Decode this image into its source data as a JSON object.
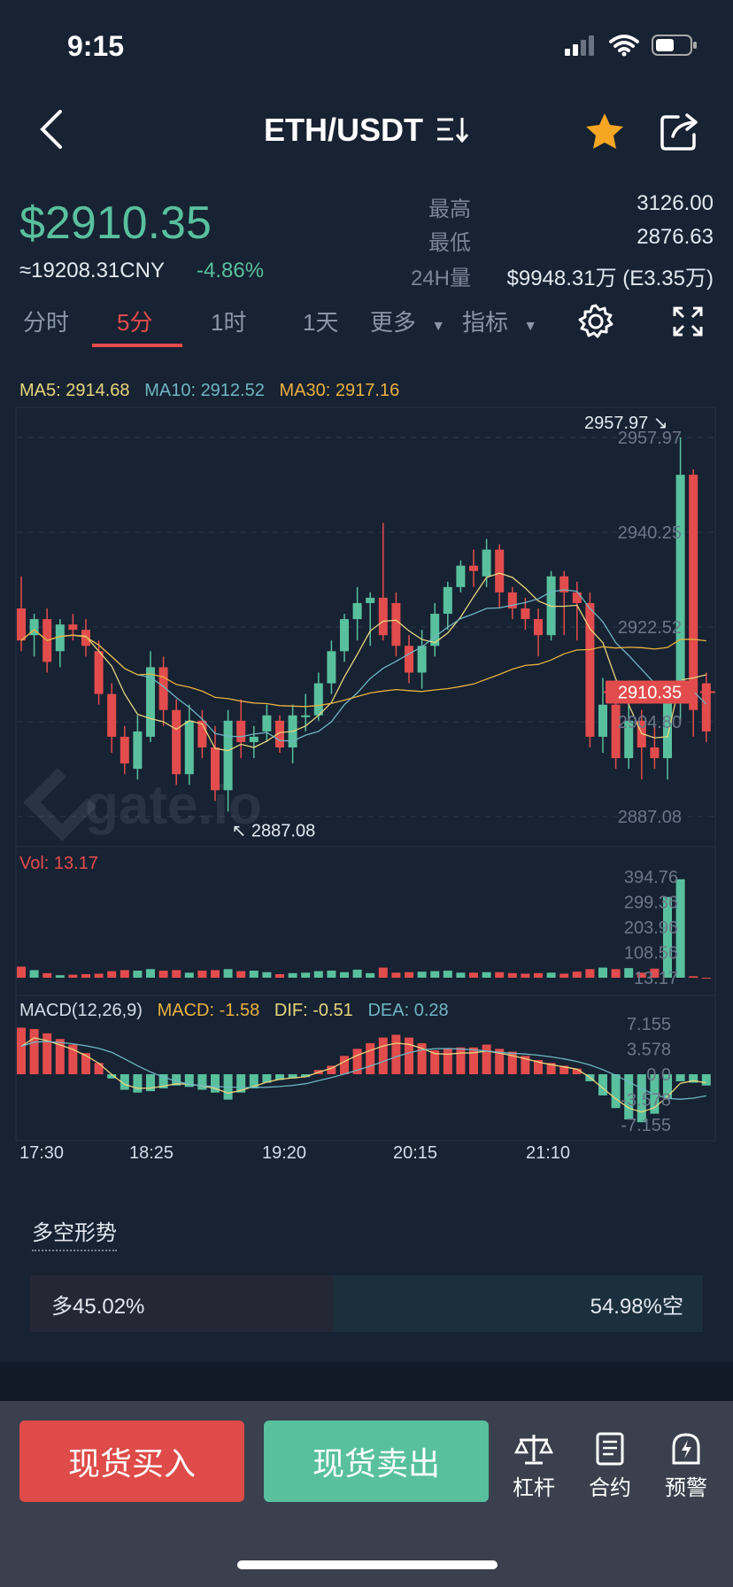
{
  "status_bar": {
    "time": "9:15"
  },
  "header": {
    "pair": "ETH/USDT"
  },
  "ticker": {
    "price": "$2910.35",
    "cny": "≈19208.31CNY",
    "change": "-4.86%",
    "high_label": "最高",
    "high_value": "3126.00",
    "low_label": "最低",
    "low_value": "2876.63",
    "vol_label": "24H量",
    "vol_value": "$9948.31万 (E3.35万)"
  },
  "tabs": [
    {
      "label": "分时"
    },
    {
      "label": "5分",
      "active": true
    },
    {
      "label": "1时"
    },
    {
      "label": "1天"
    },
    {
      "label": "更多"
    },
    {
      "label": "指标"
    }
  ],
  "ma_legend": {
    "ma5": "MA5: 2914.68",
    "ma10": "MA10: 2912.52",
    "ma30": "MA30: 2917.16"
  },
  "vol_legend": "Vol: 13.17",
  "macd_legend": {
    "name": "MACD(12,26,9)",
    "macd": "MACD: -1.58",
    "dif": "DIF: -0.51",
    "dea": "DEA: 0.28"
  },
  "watermark": "gate.io",
  "colors": {
    "up": "#59c09e",
    "down": "#e34c4c",
    "ma5": "#e8d67c",
    "ma10": "#6fb6c4",
    "ma30": "#e9b13f",
    "bg": "#172232"
  },
  "chart_data": [
    {
      "type": "candlestick",
      "title": "",
      "price_axis": [
        "2957.97",
        "2940.25",
        "2922.52",
        "2904.80",
        "2887.08"
      ],
      "ylim": [
        2887.08,
        2957.97
      ],
      "current_price": "2910.35",
      "high_marker": "2957.97",
      "low_marker": "2887.08",
      "time_axis": [
        "17:30",
        "18:25",
        "19:20",
        "20:15",
        "21:10"
      ],
      "candles": [
        [
          2926,
          2920,
          2932,
          2918
        ],
        [
          2921,
          2924,
          2925,
          2917
        ],
        [
          2924,
          2916,
          2926,
          2914
        ],
        [
          2918,
          2923,
          2924,
          2915
        ],
        [
          2923,
          2922,
          2925,
          2920
        ],
        [
          2922,
          2919,
          2924,
          2917
        ],
        [
          2918,
          2910,
          2920,
          2908
        ],
        [
          2910,
          2902,
          2912,
          2899
        ],
        [
          2902,
          2897,
          2904,
          2895
        ],
        [
          2896,
          2903,
          2906,
          2894
        ],
        [
          2902,
          2915,
          2918,
          2901
        ],
        [
          2915,
          2907,
          2917,
          2904
        ],
        [
          2907,
          2895,
          2909,
          2893
        ],
        [
          2895,
          2905,
          2908,
          2893
        ],
        [
          2905,
          2900,
          2907,
          2898
        ],
        [
          2900,
          2892,
          2904,
          2890
        ],
        [
          2892,
          2905,
          2907,
          2888
        ],
        [
          2905,
          2901,
          2909,
          2898
        ],
        [
          2901,
          2902,
          2904,
          2898
        ],
        [
          2903,
          2906,
          2908,
          2901
        ],
        [
          2905,
          2900,
          2906,
          2899
        ],
        [
          2900,
          2906,
          2908,
          2897
        ],
        [
          2906,
          2906,
          2910,
          2903
        ],
        [
          2906,
          2912,
          2914,
          2905
        ],
        [
          2912,
          2918,
          2920,
          2910
        ],
        [
          2918,
          2924,
          2925,
          2916
        ],
        [
          2924,
          2927,
          2930,
          2920
        ],
        [
          2927,
          2928,
          2929,
          2919
        ],
        [
          2928,
          2921,
          2942,
          2920
        ],
        [
          2927,
          2919,
          2929,
          2917
        ],
        [
          2919,
          2914,
          2921,
          2912
        ],
        [
          2914,
          2919,
          2922,
          2911
        ],
        [
          2919,
          2925,
          2927,
          2917
        ],
        [
          2925,
          2930,
          2931,
          2922
        ],
        [
          2930,
          2934,
          2935,
          2929
        ],
        [
          2934,
          2933,
          2937,
          2930
        ],
        [
          2932,
          2937,
          2939,
          2930
        ],
        [
          2937,
          2929,
          2938,
          2926
        ],
        [
          2929,
          2926,
          2930,
          2924
        ],
        [
          2926,
          2924,
          2928,
          2922
        ],
        [
          2924,
          2921,
          2926,
          2917
        ],
        [
          2921,
          2932,
          2933,
          2920
        ],
        [
          2932,
          2929,
          2933,
          2921
        ],
        [
          2929,
          2927,
          2931,
          2920
        ],
        [
          2927,
          2902,
          2929,
          2900
        ],
        [
          2902,
          2908,
          2913,
          2899
        ],
        [
          2908,
          2898,
          2911,
          2896
        ],
        [
          2898,
          2905,
          2908,
          2896
        ],
        [
          2905,
          2900,
          2907,
          2894
        ],
        [
          2900,
          2898,
          2904,
          2896
        ],
        [
          2898,
          2909,
          2912,
          2894
        ],
        [
          2909,
          2951,
          2957.97,
          2905
        ],
        [
          2951,
          2907,
          2952,
          2902
        ],
        [
          2912,
          2903,
          2914,
          2901
        ]
      ]
    },
    {
      "type": "bar",
      "title": "",
      "series_label": "Vol",
      "y_axis": [
        "394.76",
        "299.36",
        "203.96",
        "108.56",
        "13.17"
      ],
      "ylim": [
        13.17,
        394.76
      ]
    },
    {
      "type": "bar",
      "title": "",
      "series_label": "MACD(12,26,9)",
      "y_axis": [
        "7.155",
        "3.578",
        "0.0",
        "-3.578",
        "-7.155"
      ],
      "ylim": [
        -7.155,
        7.155
      ]
    }
  ],
  "long_short": {
    "title": "多空形势",
    "long": "多45.02%",
    "short": "54.98%空",
    "long_pct": 0.4502
  },
  "actions": {
    "buy": "现货买入",
    "sell": "现货卖出"
  },
  "tools": [
    {
      "label": "杠杆",
      "icon": "scale-icon"
    },
    {
      "label": "合约",
      "icon": "document-icon"
    },
    {
      "label": "预警",
      "icon": "alert-icon"
    }
  ]
}
